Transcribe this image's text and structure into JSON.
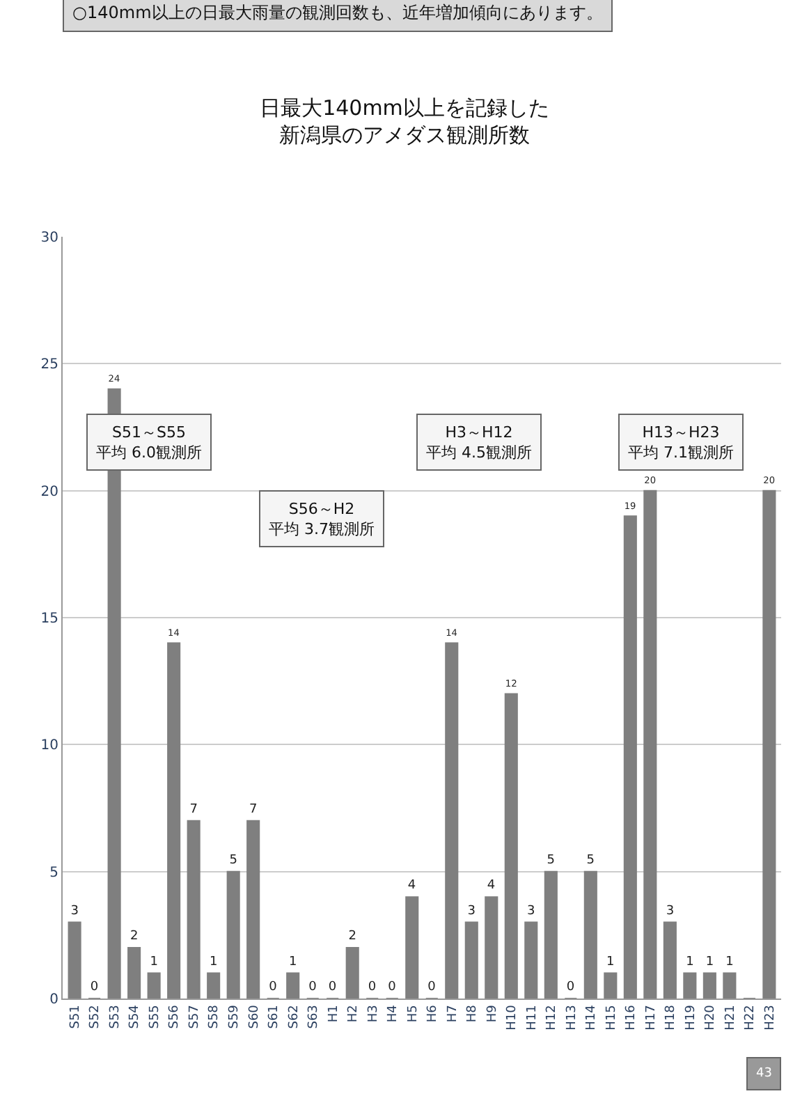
{
  "chart_data": {
    "type": "bar",
    "title": "日最大140mm以上を記録した",
    "subtitle": "新潟県のアメダス観測所数",
    "categories": [
      "S51",
      "S52",
      "S53",
      "S54",
      "S55",
      "S56",
      "S57",
      "S58",
      "S59",
      "S60",
      "S61",
      "S62",
      "S63",
      "H1",
      "H2",
      "H3",
      "H4",
      "H5",
      "H6",
      "H7",
      "H8",
      "H9",
      "H10",
      "H11",
      "H12",
      "H13",
      "H14",
      "H15",
      "H16",
      "H17",
      "H18",
      "H19",
      "H20",
      "H21",
      "H22",
      "H23"
    ],
    "values": [
      3,
      0,
      24,
      2,
      1,
      14,
      7,
      1,
      5,
      7,
      0,
      1,
      0,
      0,
      2,
      0,
      0,
      4,
      0,
      14,
      3,
      4,
      12,
      3,
      5,
      0,
      5,
      1,
      19,
      20,
      3,
      1,
      1,
      1,
      0,
      20
    ],
    "value_labels": [
      "3",
      "0",
      "24",
      "2",
      "1",
      "14",
      "7",
      "1",
      "5",
      "7",
      "0",
      "1",
      "0",
      "0",
      "2",
      "0",
      "0",
      "4",
      "0",
      "14",
      "3",
      "4",
      "12",
      "3",
      "5",
      "0",
      "5",
      "1",
      "19",
      "20",
      "3",
      "1",
      "1",
      "1",
      null,
      "20"
    ],
    "color": "#7f7f7f",
    "ylim": [
      0,
      30
    ],
    "yticks": [
      0,
      5,
      10,
      15,
      20,
      25,
      30
    ],
    "grid": "y",
    "annotations": [
      "○140mm以上の日最大雨量の観測回数も、近年増加傾向にあります。",
      "S51～S55\n平均 6.0観測所",
      "S56～H2\n平均 3.7観測所",
      "H3～H12\n平均 4.5観測所",
      "H13～H23\n平均 7.1観測所",
      "43"
    ]
  }
}
